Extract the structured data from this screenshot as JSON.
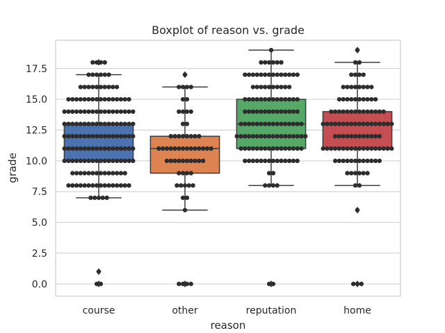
{
  "chart_data": {
    "type": "box",
    "title": "Boxplot of reason vs. grade",
    "xlabel": "reason",
    "ylabel": "grade",
    "categories": [
      "course",
      "other",
      "reputation",
      "home"
    ],
    "ylim": [
      -1,
      19.8
    ],
    "yticks": [
      0.0,
      2.5,
      5.0,
      7.5,
      10.0,
      12.5,
      15.0,
      17.5
    ],
    "ytick_labels": [
      "0.0",
      "2.5",
      "5.0",
      "7.5",
      "10.0",
      "12.5",
      "15.0",
      "17.5"
    ],
    "grid": true,
    "colors": [
      "#4c72b0",
      "#dd8452",
      "#55a868",
      "#c44e52"
    ],
    "point_color": "#2d2d2d",
    "boxes": [
      {
        "category": "course",
        "q1": 10,
        "median": 11,
        "q3": 13,
        "whisker_low": 7,
        "whisker_high": 17,
        "fliers": [
          0,
          1,
          18
        ],
        "points": [
          [
            0,
            2
          ],
          [
            1,
            1
          ],
          [
            7,
            5
          ],
          [
            8,
            16
          ],
          [
            9,
            14
          ],
          [
            10,
            18
          ],
          [
            11,
            18
          ],
          [
            12,
            18
          ],
          [
            13,
            18
          ],
          [
            14,
            18
          ],
          [
            15,
            16
          ],
          [
            16,
            10
          ],
          [
            17,
            6
          ],
          [
            18,
            4
          ]
        ]
      },
      {
        "category": "other",
        "q1": 9,
        "median": 11,
        "q3": 12,
        "whisker_low": 6,
        "whisker_high": 16,
        "fliers": [
          0,
          17
        ],
        "points": [
          [
            0,
            4
          ],
          [
            6,
            1
          ],
          [
            7,
            2
          ],
          [
            8,
            5
          ],
          [
            9,
            4
          ],
          [
            10,
            10
          ],
          [
            11,
            14
          ],
          [
            12,
            8
          ],
          [
            13,
            2
          ],
          [
            14,
            4
          ],
          [
            15,
            2
          ],
          [
            16,
            4
          ],
          [
            17,
            1
          ]
        ]
      },
      {
        "category": "reputation",
        "q1": 11,
        "median": 13,
        "q3": 15,
        "whisker_low": 8,
        "whisker_high": 19,
        "fliers": [
          0
        ],
        "points": [
          [
            0,
            2
          ],
          [
            8,
            4
          ],
          [
            9,
            2
          ],
          [
            10,
            14
          ],
          [
            11,
            16
          ],
          [
            12,
            18
          ],
          [
            13,
            16
          ],
          [
            14,
            14
          ],
          [
            15,
            14
          ],
          [
            16,
            10
          ],
          [
            17,
            14
          ],
          [
            18,
            6
          ],
          [
            19,
            1
          ]
        ]
      },
      {
        "category": "home",
        "q1": 11,
        "median": 13,
        "q3": 14,
        "whisker_low": 8,
        "whisker_high": 18,
        "fliers": [
          0,
          6,
          19
        ],
        "points": [
          [
            0,
            3
          ],
          [
            6,
            1
          ],
          [
            8,
            2
          ],
          [
            9,
            6
          ],
          [
            10,
            12
          ],
          [
            11,
            18
          ],
          [
            12,
            12
          ],
          [
            13,
            18
          ],
          [
            14,
            14
          ],
          [
            15,
            10
          ],
          [
            16,
            8
          ],
          [
            17,
            4
          ],
          [
            18,
            2
          ],
          [
            19,
            1
          ]
        ]
      }
    ]
  }
}
